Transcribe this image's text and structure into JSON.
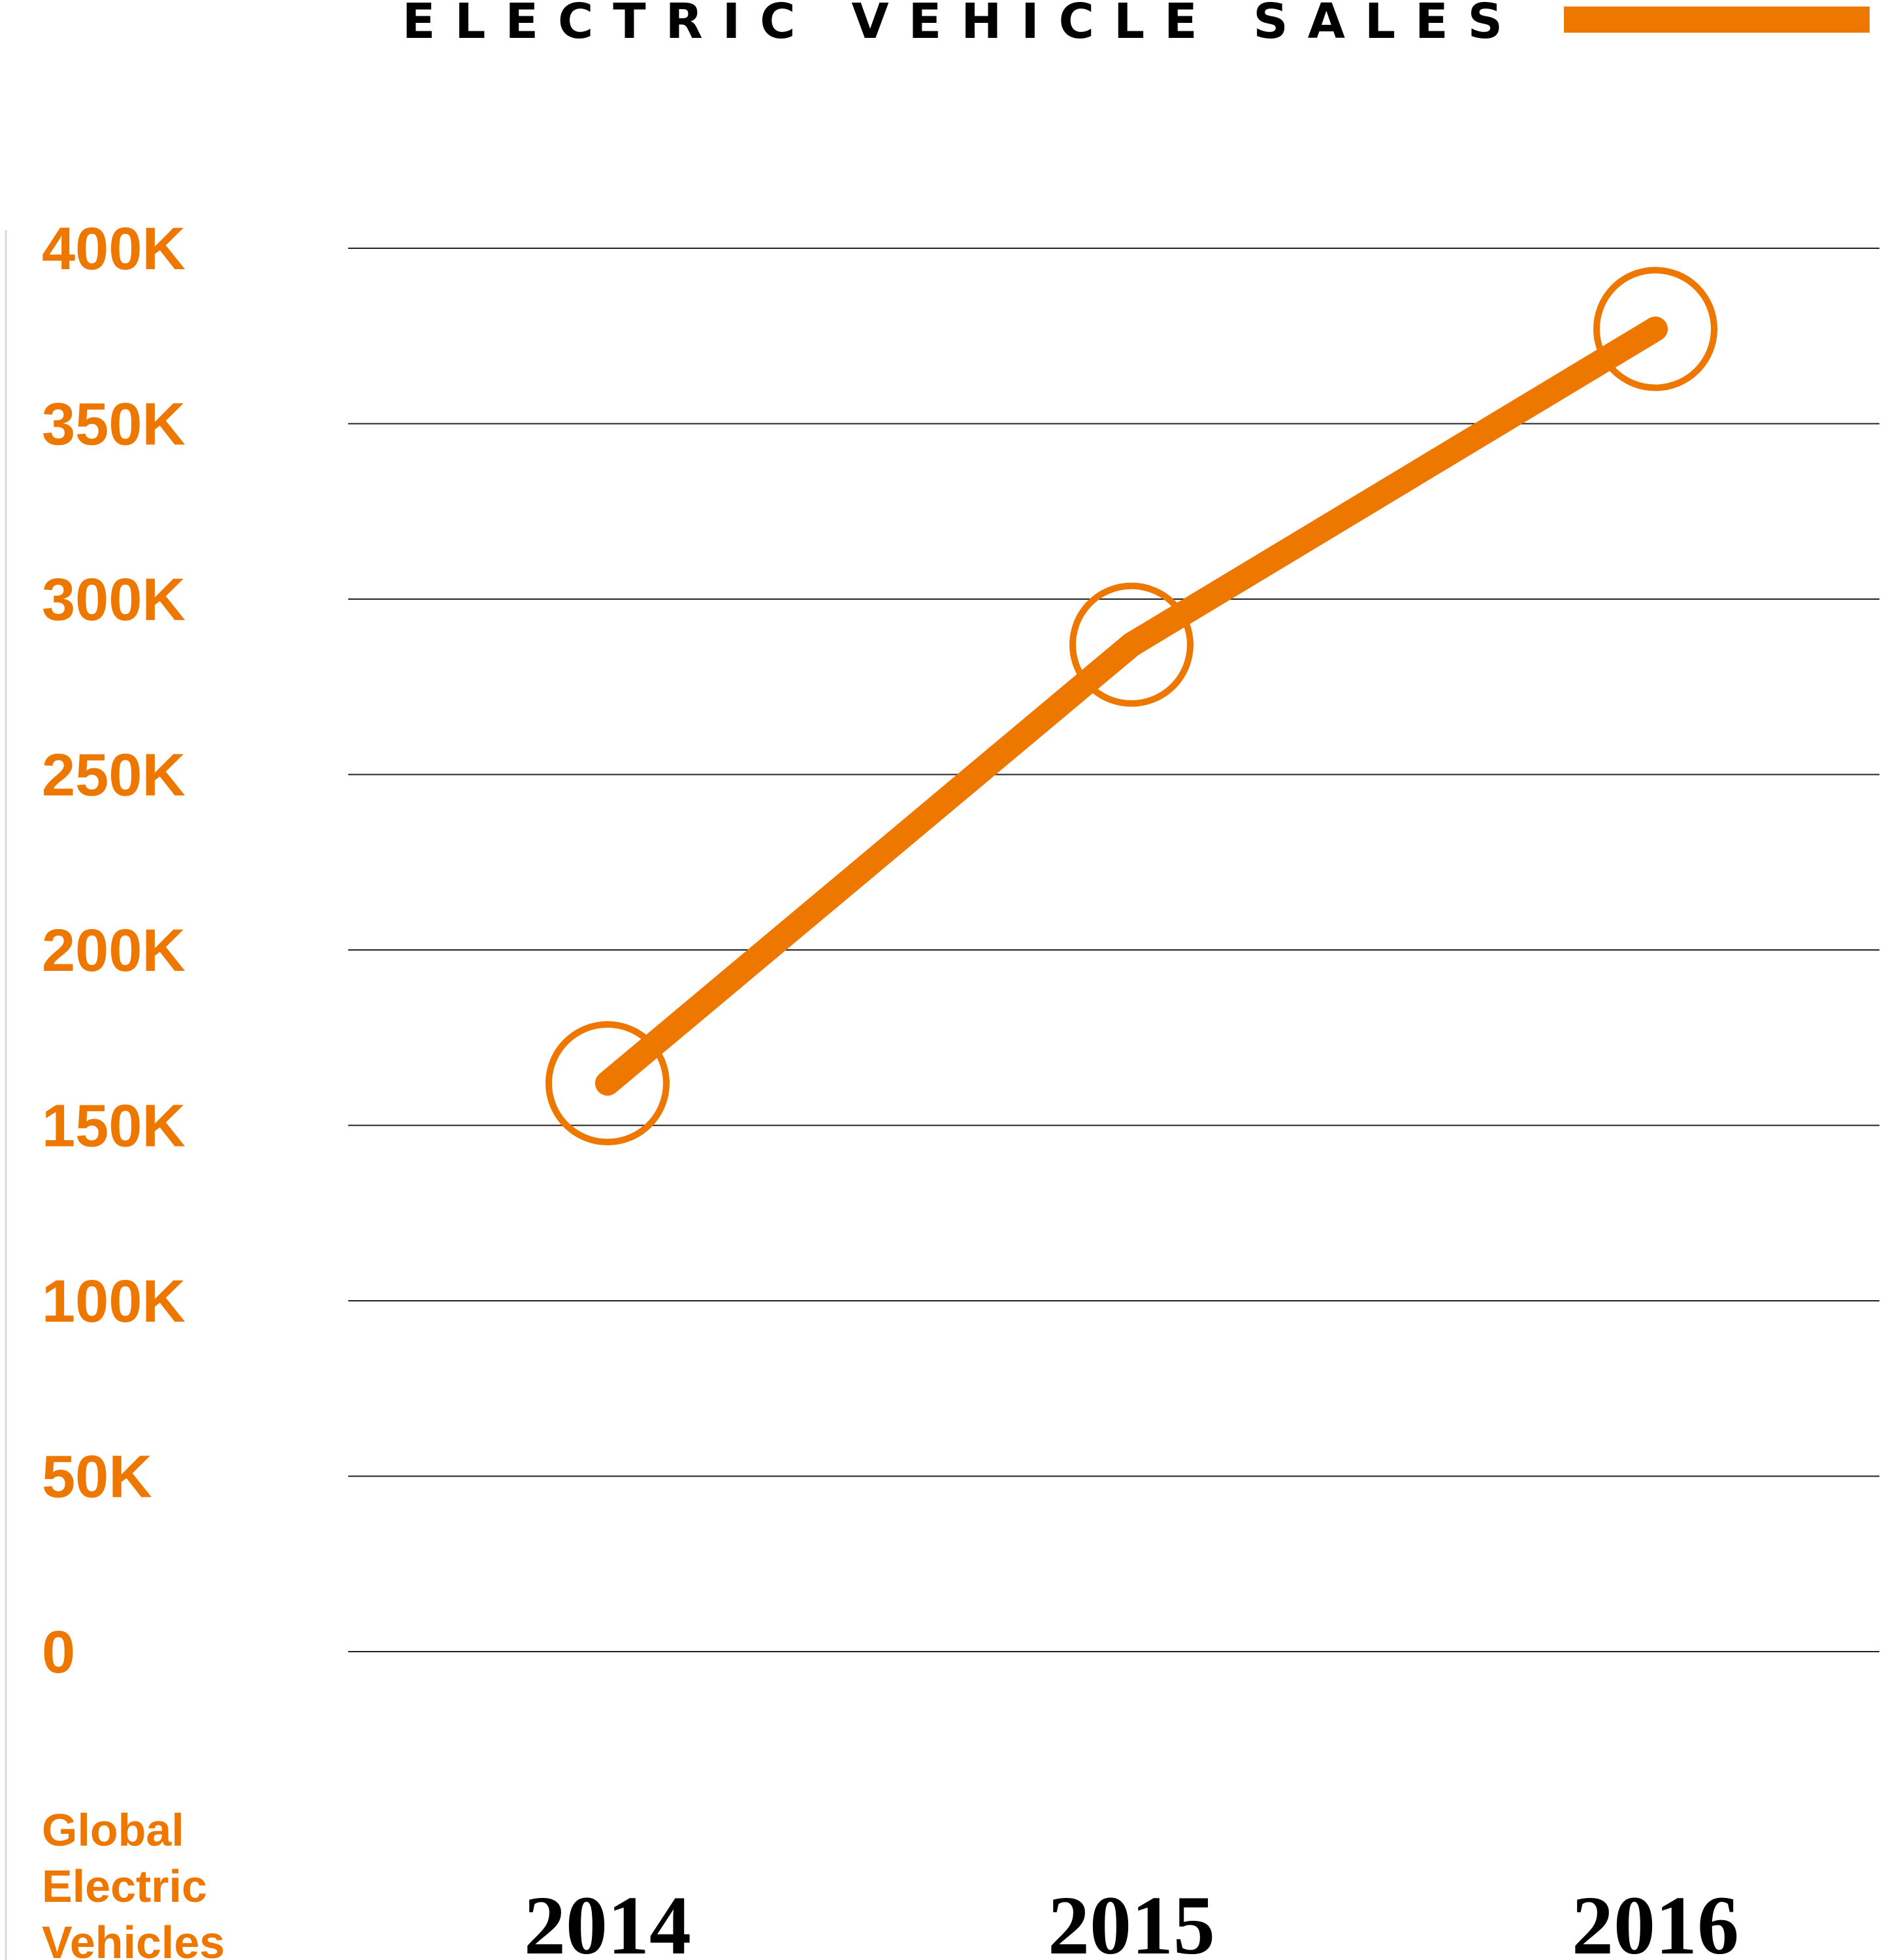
{
  "chart_data": {
    "type": "line",
    "title": "ELECTRIC VEHICLE SALES",
    "ylabel": [
      "Global",
      "Electric",
      "Vehicles"
    ],
    "x": [
      "2014",
      "2015",
      "2016"
    ],
    "series": [
      {
        "values": [
          162000,
          287000,
          377000
        ]
      }
    ],
    "yticks": [
      0,
      50000,
      100000,
      150000,
      200000,
      250000,
      300000,
      350000,
      400000
    ],
    "ytick_labels": [
      "0",
      "50K",
      "100K",
      "150K",
      "200K",
      "250K",
      "300K",
      "350K",
      "400K"
    ],
    "ylim": [
      0,
      400000
    ],
    "grid": "horizontal",
    "legend": "top-right",
    "colors": {
      "series": "#EE7700",
      "text": "#000000",
      "grid": "#222222"
    }
  }
}
